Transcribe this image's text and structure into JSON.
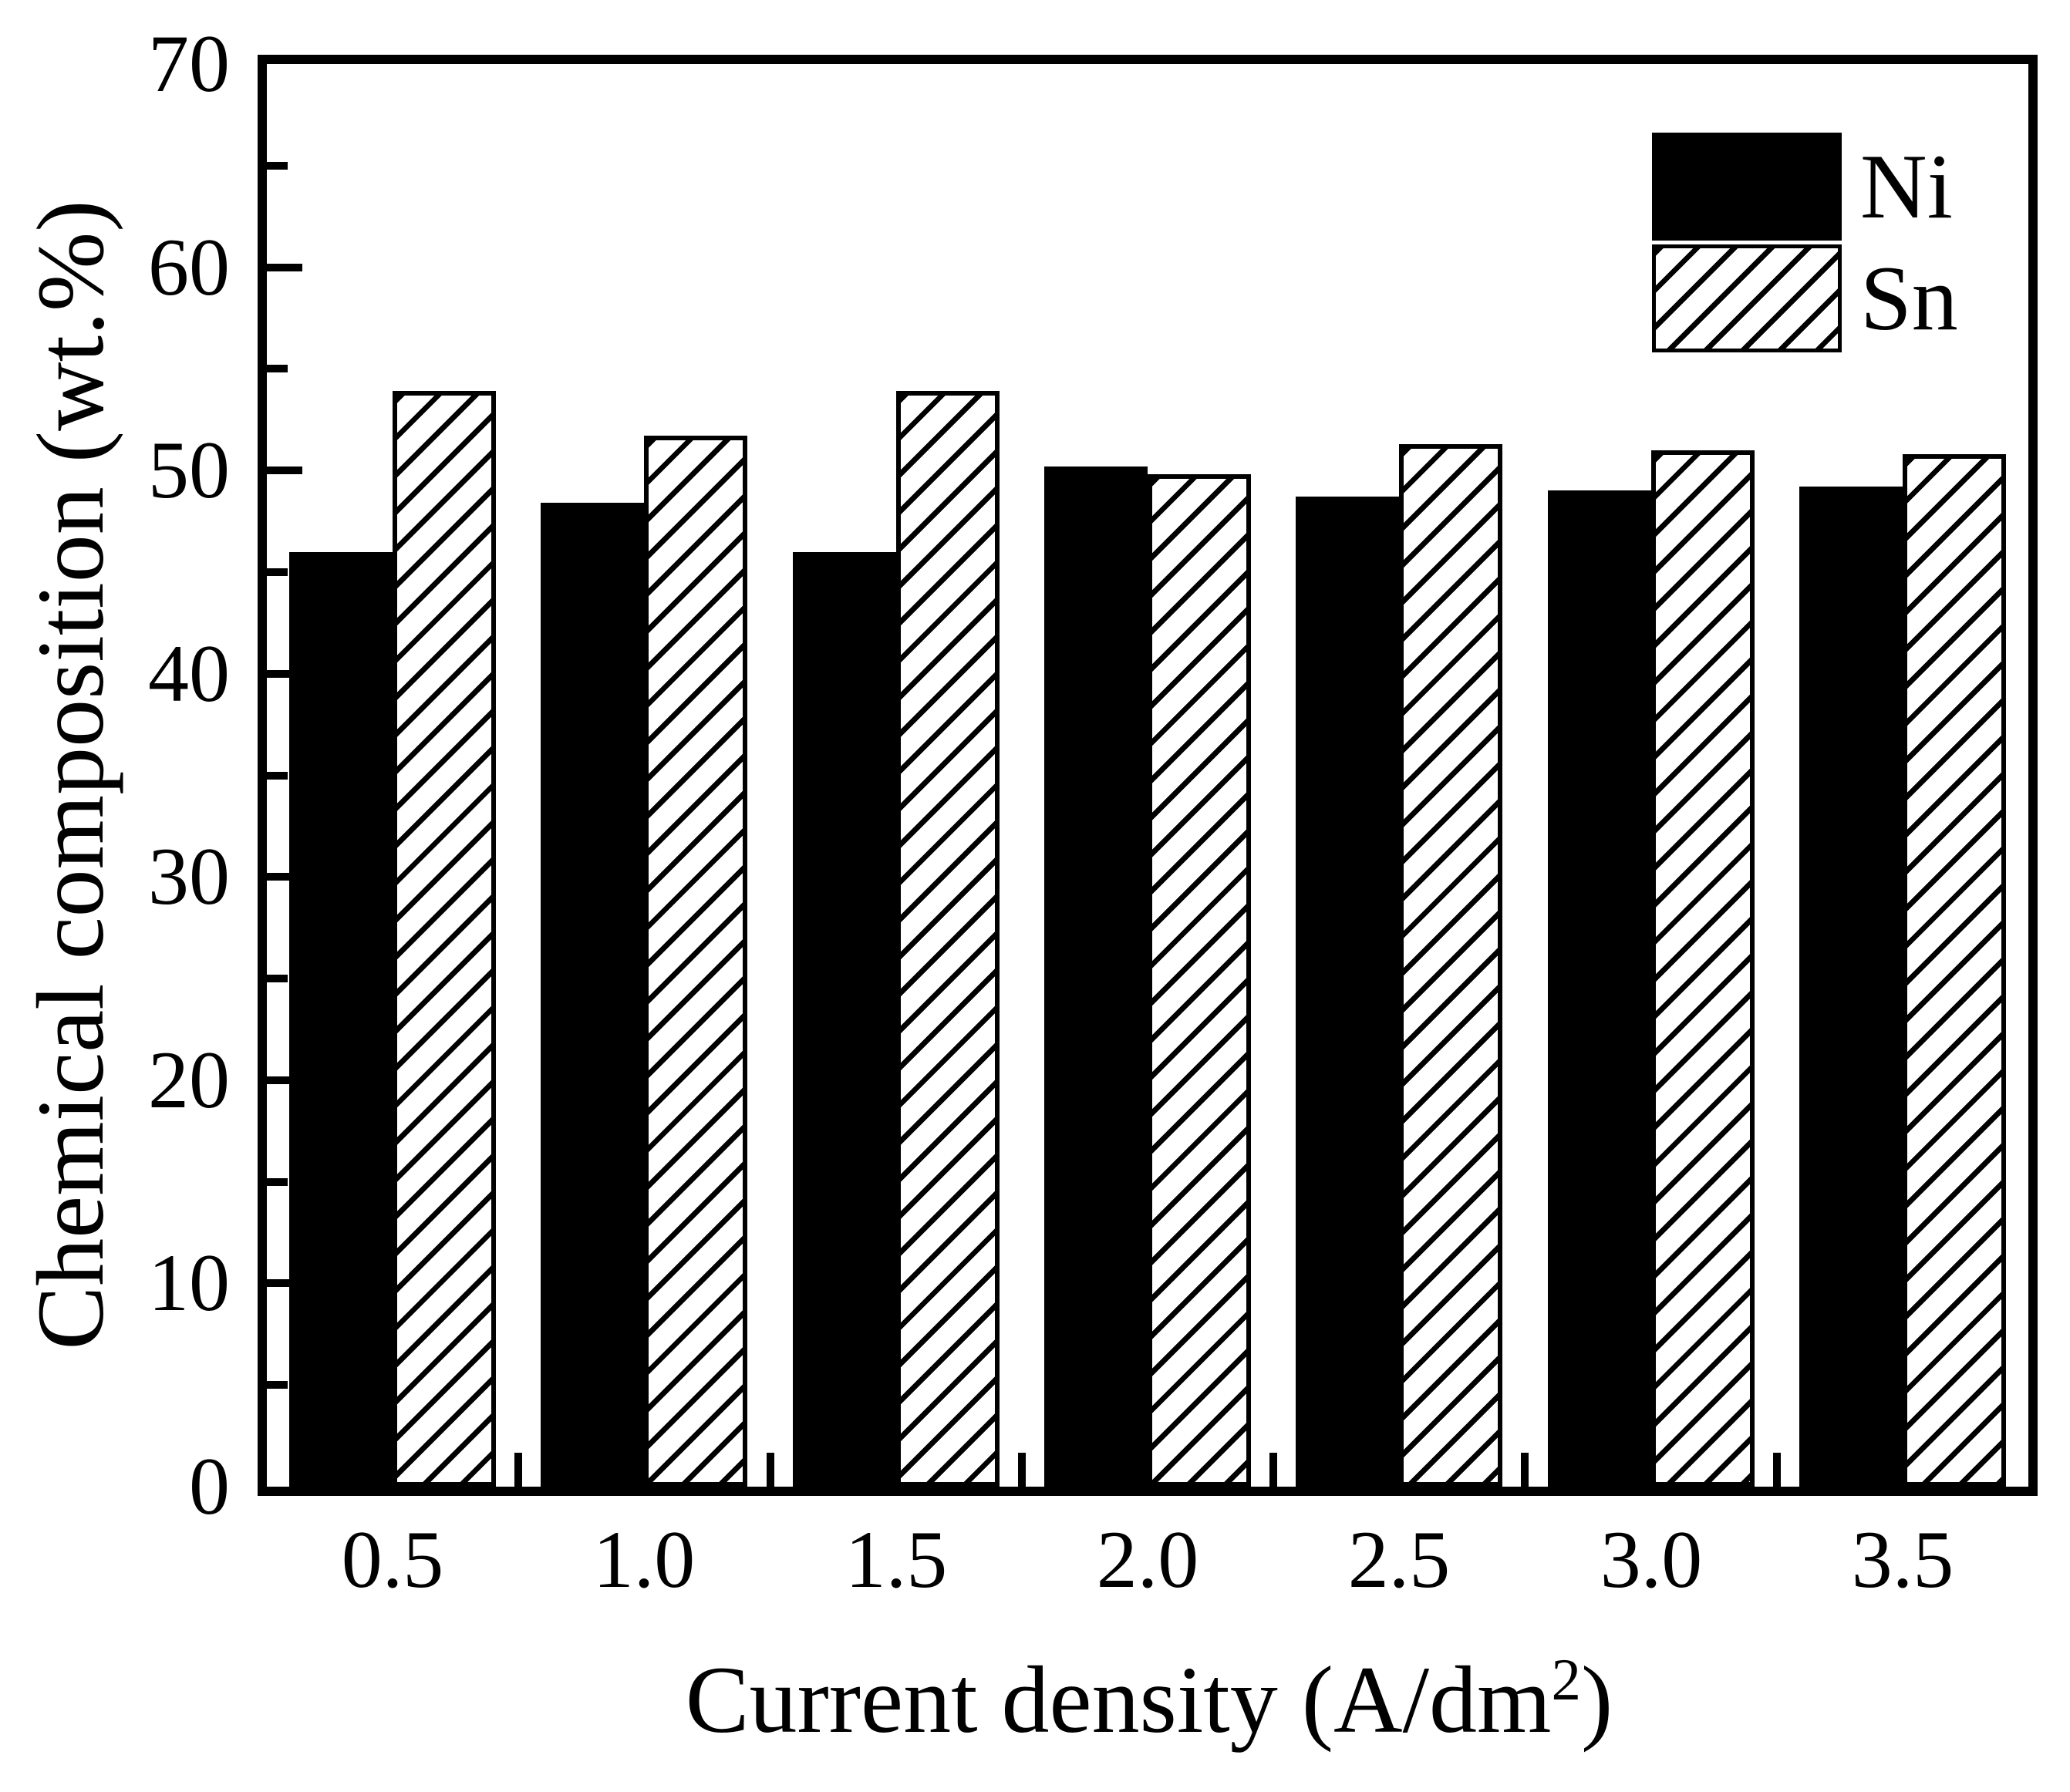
{
  "figure": {
    "background": "#ffffff",
    "frame_color": "#000000"
  },
  "chart_data": {
    "type": "bar",
    "title": "",
    "categories": [
      "0.5",
      "1.0",
      "1.5",
      "2.0",
      "2.5",
      "3.0",
      "3.5"
    ],
    "series": [
      {
        "name": "Ni",
        "style": "solid-black",
        "values": [
          46.0,
          48.4,
          46.0,
          50.2,
          48.7,
          49.0,
          49.2
        ]
      },
      {
        "name": "Sn",
        "style": "diagonal-hatch",
        "values": [
          53.9,
          51.7,
          53.9,
          49.8,
          51.3,
          51.0,
          50.8
        ]
      }
    ],
    "xlabel": "Current density (A/dm²)",
    "xlabel_base": "Current density (A/dm",
    "xlabel_sup": "2",
    "xlabel_close": ")",
    "ylabel": "Chemical composition (wt.%)",
    "ylim": [
      0,
      70
    ],
    "ytick_major": [
      0,
      10,
      20,
      30,
      40,
      50,
      60,
      70
    ],
    "ytick_minor": [
      5,
      15,
      25,
      35,
      45,
      55,
      65
    ],
    "grid": false,
    "legend_position": "top-right-inside",
    "bar_colors": {
      "ni": "#000000",
      "sn_line": "#000000",
      "sn_fill": "#ffffff"
    }
  },
  "legend": {
    "items": [
      {
        "label": "Ni"
      },
      {
        "label": "Sn"
      }
    ]
  }
}
